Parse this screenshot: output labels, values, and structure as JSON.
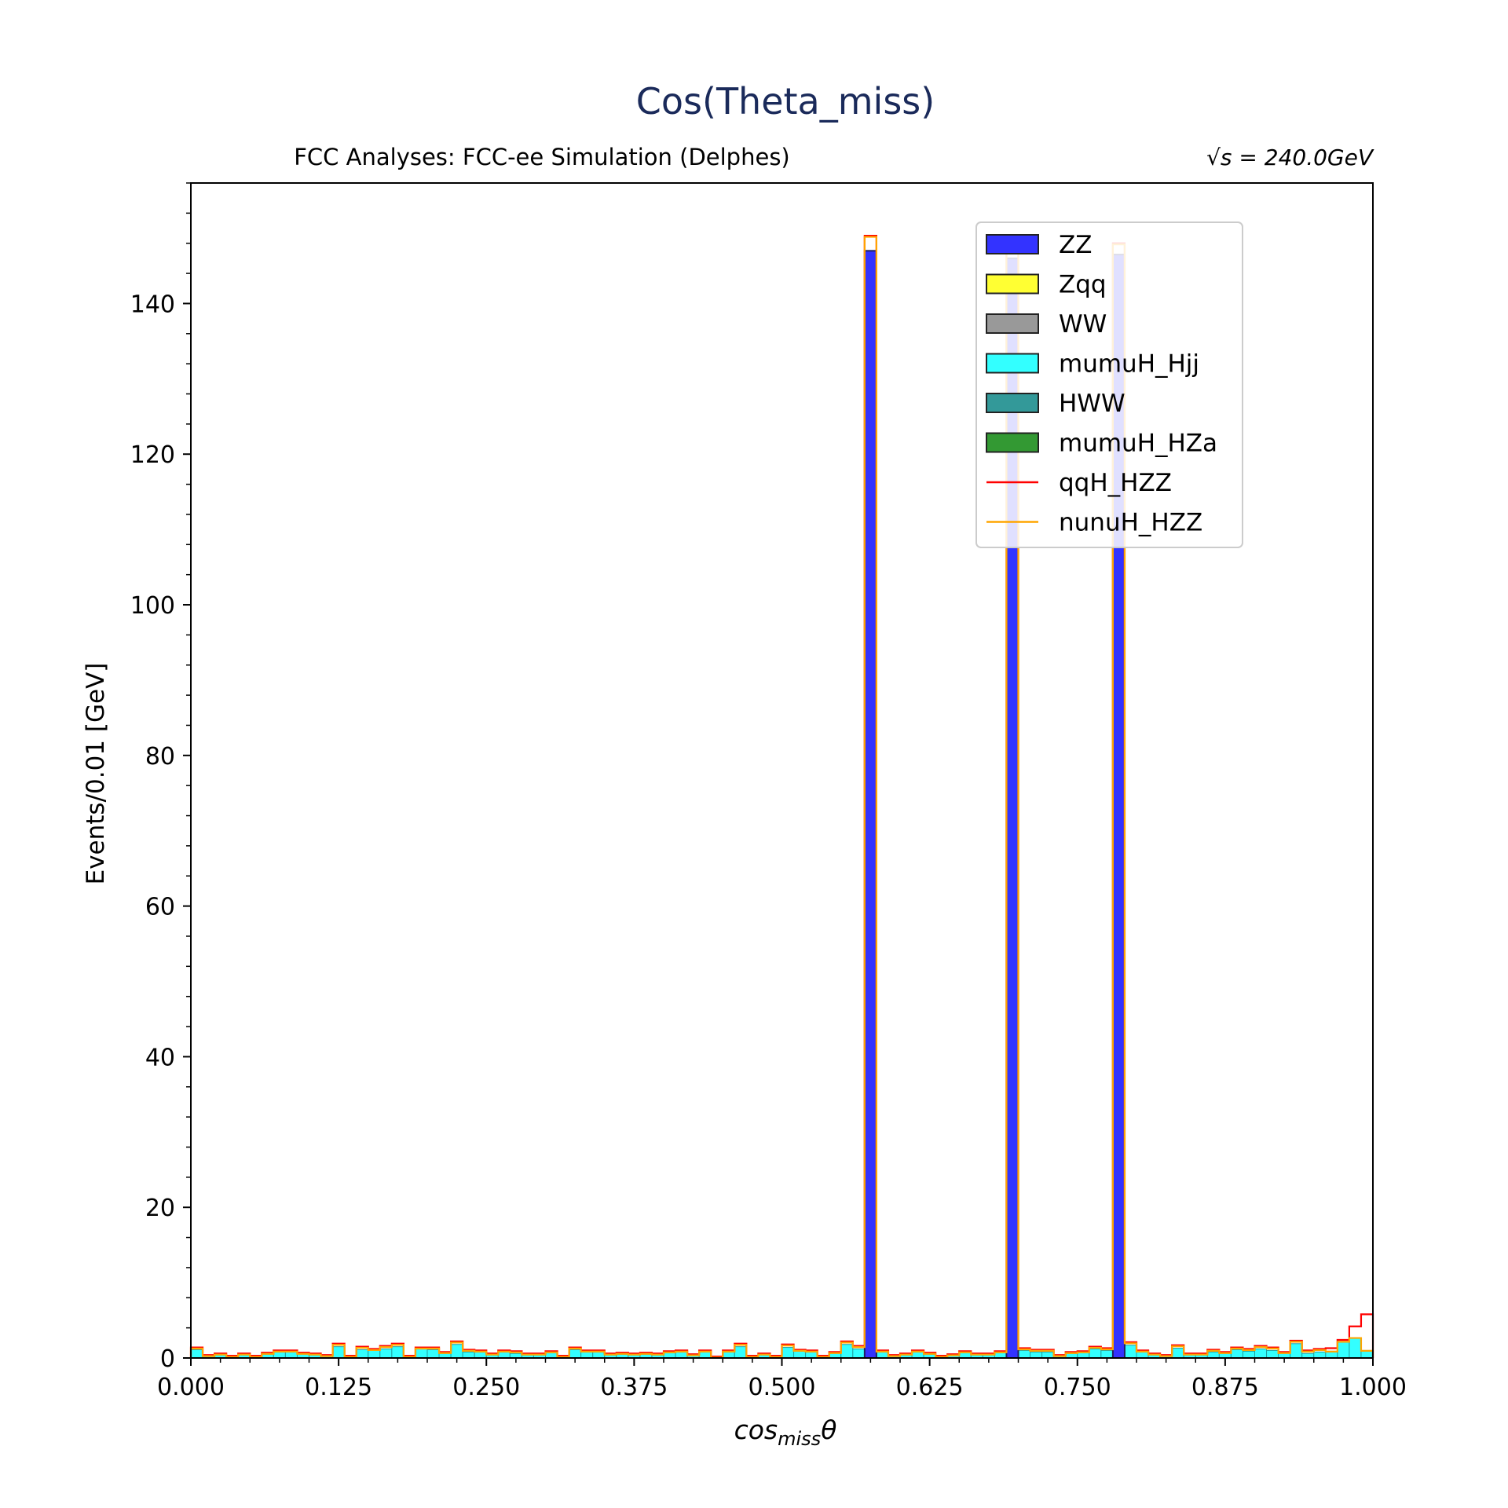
{
  "chart_data": {
    "type": "bar",
    "title": "Cos(Theta_miss)",
    "subtitle_left": "FCC Analyses: FCC-ee Simulation (Delphes)",
    "subtitle_right": "√s = 240.0GeV",
    "xlabel": "cos_miss θ",
    "ylabel": "Events/0.01 [GeV]",
    "xlim": [
      0,
      1
    ],
    "ylim": [
      0,
      156
    ],
    "xticks": [
      "0.000",
      "0.125",
      "0.250",
      "0.375",
      "0.500",
      "0.625",
      "0.750",
      "0.875",
      "1.000"
    ],
    "yticks": [
      "0",
      "20",
      "40",
      "60",
      "80",
      "100",
      "120",
      "140"
    ],
    "bin_width": 0.01,
    "legend_position": "top-right",
    "stack_total": [
      1.4,
      0.4,
      0.6,
      0.3,
      0.6,
      0.3,
      0.7,
      1.0,
      1.0,
      0.7,
      0.6,
      0.4,
      1.9,
      0.3,
      1.5,
      1.2,
      1.6,
      1.9,
      0.3,
      1.4,
      1.4,
      0.8,
      2.2,
      1.1,
      1.0,
      0.6,
      1.0,
      0.9,
      0.6,
      0.6,
      0.9,
      0.3,
      1.4,
      1.0,
      1.0,
      0.6,
      0.7,
      0.6,
      0.7,
      0.6,
      0.9,
      1.0,
      0.5,
      1.0,
      0.2,
      1.0,
      1.9,
      0.3,
      0.6,
      0.3,
      1.8,
      1.1,
      1.0,
      0.3,
      0.8,
      2.2,
      1.6,
      149.0,
      1.0,
      0.4,
      0.6,
      1.0,
      0.7,
      0.3,
      0.5,
      0.9,
      0.6,
      0.6,
      0.9,
      148.0,
      1.3,
      1.1,
      1.1,
      0.4,
      0.8,
      0.9,
      1.5,
      1.3,
      148.0,
      2.1,
      1.0,
      0.6,
      0.4,
      1.7,
      0.6,
      0.6,
      1.1,
      0.8,
      1.4,
      1.2,
      1.6,
      1.4,
      0.8,
      2.3,
      1.0,
      1.2,
      1.3,
      2.4,
      4.2,
      5.8
    ],
    "series": [
      {
        "name": "ZZ",
        "color": "#3333ff",
        "style": "filled",
        "x": [
          0.575,
          0.695,
          0.785
        ],
        "values": [
          147.0,
          146.0,
          146.5
        ]
      },
      {
        "name": "Zqq",
        "color": "#ffff33",
        "style": "filled",
        "values": []
      },
      {
        "name": "WW",
        "color": "#999999",
        "style": "filled",
        "values": []
      },
      {
        "name": "mumuH_Hjj",
        "color": "#33ffff",
        "style": "filled",
        "values": [
          1.1,
          0.2,
          0.4,
          0.1,
          0.4,
          0.2,
          0.5,
          0.8,
          0.8,
          0.6,
          0.4,
          0.2,
          1.5,
          0.2,
          1.1,
          1.0,
          1.2,
          1.5,
          0.2,
          1.2,
          1.1,
          0.6,
          1.8,
          0.8,
          0.8,
          0.4,
          0.8,
          0.6,
          0.4,
          0.4,
          0.7,
          0.2,
          1.1,
          0.8,
          0.8,
          0.4,
          0.5,
          0.4,
          0.5,
          0.4,
          0.7,
          0.8,
          0.3,
          0.8,
          0.1,
          0.8,
          1.5,
          0.2,
          0.4,
          0.2,
          1.4,
          0.9,
          0.8,
          0.2,
          0.6,
          1.8,
          1.2,
          1.5,
          0.8,
          0.3,
          0.4,
          0.8,
          0.5,
          0.2,
          0.3,
          0.7,
          0.4,
          0.4,
          0.7,
          1.4,
          1.0,
          0.8,
          0.8,
          0.3,
          0.6,
          0.7,
          1.2,
          1.0,
          1.0,
          1.7,
          0.8,
          0.4,
          0.3,
          1.3,
          0.4,
          0.4,
          0.8,
          0.6,
          1.1,
          0.9,
          1.2,
          1.0,
          0.6,
          1.9,
          0.6,
          0.8,
          0.9,
          2.2,
          2.7,
          1.0
        ]
      },
      {
        "name": "HWW",
        "color": "#339999",
        "style": "filled",
        "values": []
      },
      {
        "name": "mumuH_HZa",
        "color": "#339933",
        "style": "filled",
        "values": []
      },
      {
        "name": "qqH_HZZ",
        "color": "#ff0000",
        "style": "line",
        "values": []
      },
      {
        "name": "nunuH_HZZ",
        "color": "#ffa500",
        "style": "line",
        "values": []
      }
    ]
  }
}
